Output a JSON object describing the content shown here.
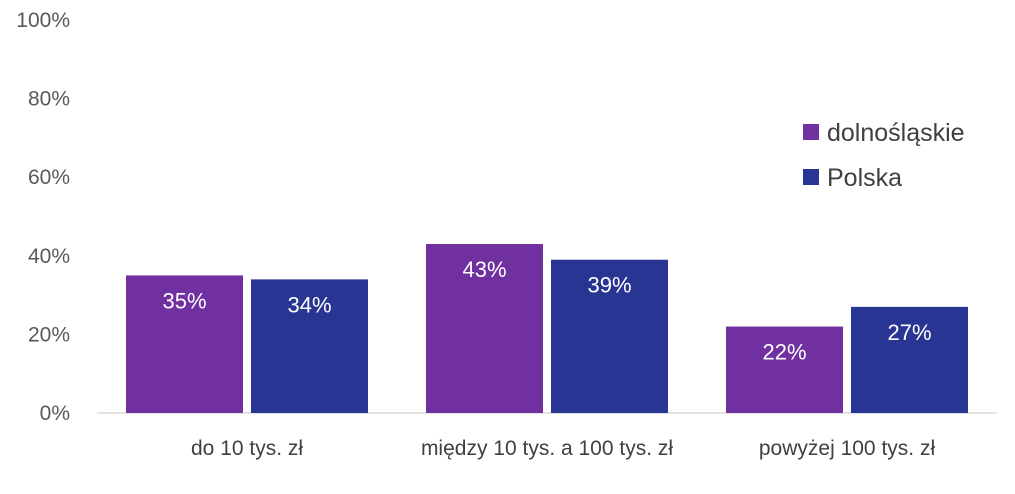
{
  "chart_data": {
    "type": "bar",
    "categories": [
      "do 10 tys. zł",
      "między 10 tys. a 100 tys. zł",
      "powyżej 100 tys. zł"
    ],
    "series": [
      {
        "name": "dolnośląskie",
        "values": [
          35,
          43,
          22
        ],
        "labels": [
          "35%",
          "43%",
          "22%"
        ],
        "color": "#7030a0"
      },
      {
        "name": "Polska",
        "values": [
          34,
          39,
          27
        ],
        "labels": [
          "34%",
          "39%",
          "27%"
        ],
        "color": "#283593"
      }
    ],
    "ylim": [
      0,
      100
    ],
    "yticks": [
      0,
      20,
      40,
      60,
      80,
      100
    ],
    "ytick_labels": [
      "0%",
      "20%",
      "40%",
      "60%",
      "80%",
      "100%"
    ],
    "title": "",
    "xlabel": "",
    "ylabel": "",
    "grid": false,
    "legend_position": "right"
  }
}
